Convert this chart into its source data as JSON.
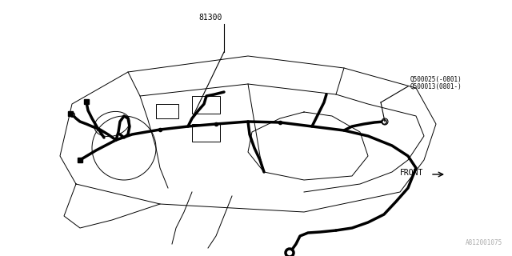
{
  "background_color": "#ffffff",
  "line_color": "#000000",
  "wiring_color": "#000000",
  "label_81300": "81300",
  "label_part1": "Q500025(-0801)",
  "label_part2": "Q500013(0801-)",
  "label_front": "FRONT",
  "label_partnum": "A812001075",
  "fig_width": 6.4,
  "fig_height": 3.2,
  "dpi": 100
}
